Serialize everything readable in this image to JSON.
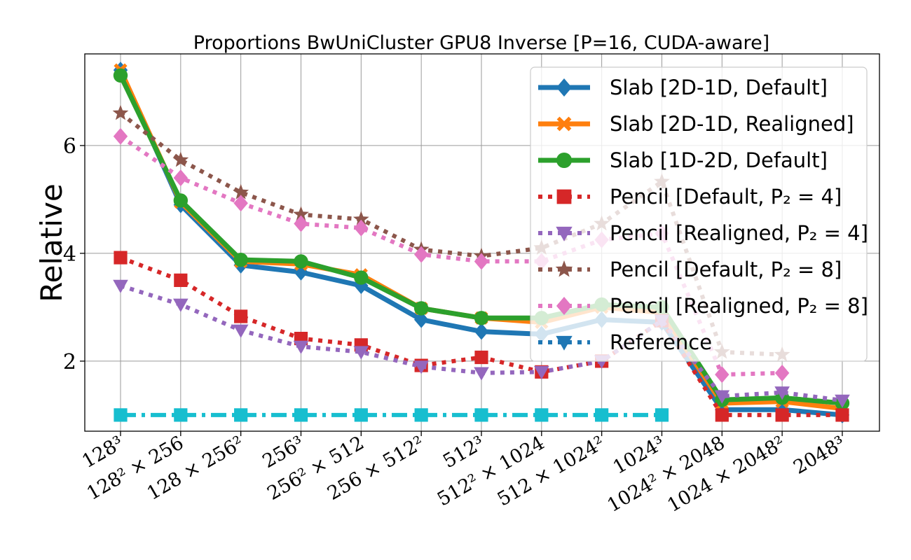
{
  "chart_data": {
    "type": "line",
    "title": "Proportions BwUniCluster GPU8 Inverse [P=16, CUDA-aware]",
    "xlabel": "",
    "ylabel": "Relative",
    "ylim": [
      0.7,
      7.7
    ],
    "yticks": [
      2,
      4,
      6
    ],
    "grid": true,
    "legend_position": "upper-right",
    "categories": [
      "128³",
      "128² × 256",
      "128 × 256²",
      "256³",
      "256² × 512",
      "256 × 512²",
      "512³",
      "512² × 1024",
      "512 × 1024²",
      "1024³",
      "1024² × 2048",
      "1024 × 2048²",
      "2048³"
    ],
    "series": [
      {
        "name": "Slab [2D-1D, Default]",
        "color": "#1f77b4",
        "marker": "diamond",
        "dash": "solid",
        "values": [
          7.4,
          4.9,
          3.78,
          3.65,
          3.4,
          2.77,
          2.55,
          2.5,
          2.77,
          2.72,
          1.1,
          1.1,
          1.0
        ]
      },
      {
        "name": "Slab [2D-1D, Realigned]",
        "color": "#ff7f0e",
        "marker": "x",
        "dash": "solid",
        "values": [
          7.4,
          4.95,
          3.85,
          3.8,
          3.6,
          2.98,
          2.8,
          2.72,
          3.0,
          2.9,
          1.22,
          1.25,
          1.12
        ]
      },
      {
        "name": "Slab [1D-2D, Default]",
        "color": "#2ca02c",
        "marker": "circle",
        "dash": "solid",
        "values": [
          7.3,
          4.98,
          3.88,
          3.85,
          3.55,
          2.98,
          2.8,
          2.8,
          3.05,
          3.0,
          1.28,
          1.32,
          1.22
        ]
      },
      {
        "name": "Pencil [Default, P₂ = 4]",
        "color": "#d62728",
        "marker": "square",
        "dash": "dotted",
        "values": [
          3.92,
          3.5,
          2.83,
          2.42,
          2.3,
          1.92,
          2.07,
          1.8,
          2.0,
          2.75,
          1.0,
          1.0,
          1.0
        ]
      },
      {
        "name": "Pencil [Realigned, P₂ = 4]",
        "color": "#9467bd",
        "marker": "triangle",
        "dash": "dotted",
        "values": [
          3.4,
          3.05,
          2.57,
          2.27,
          2.17,
          1.9,
          1.78,
          1.8,
          2.0,
          2.75,
          1.35,
          1.42,
          1.27
        ]
      },
      {
        "name": "Pencil [Default, P₂ = 8]",
        "color": "#8c564b",
        "marker": "star",
        "dash": "dotted",
        "values": [
          6.6,
          5.73,
          5.13,
          4.72,
          4.63,
          4.07,
          3.95,
          4.1,
          4.55,
          5.33,
          2.17,
          2.12,
          null
        ]
      },
      {
        "name": "Pencil [Realigned, P₂ = 8]",
        "color": "#e377c2",
        "marker": "diamond",
        "dash": "dotted",
        "values": [
          6.17,
          5.4,
          4.93,
          4.55,
          4.47,
          3.98,
          3.85,
          3.85,
          4.25,
          4.37,
          1.75,
          1.78,
          null
        ]
      },
      {
        "name": "Reference",
        "color": "#17becf",
        "marker": "square",
        "dash": "dashdot",
        "values": [
          1.0,
          1.0,
          1.0,
          1.0,
          1.0,
          1.0,
          1.0,
          1.0,
          1.0,
          1.0,
          null,
          null,
          null
        ]
      }
    ],
    "legend_markers": {
      "Reference": {
        "color": "#1f77b4",
        "marker": "triangle-down",
        "dash": "dotted"
      }
    }
  }
}
